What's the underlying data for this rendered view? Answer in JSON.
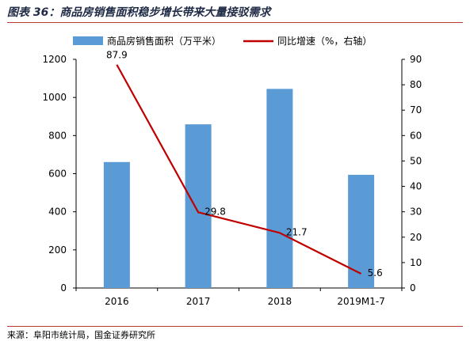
{
  "title": "图表 36：商品房销售面积稳步增长带来大量接驳需求",
  "source": "来源：阜阳市统计局，国金证券研究所",
  "colors": {
    "bar": "#5b9bd5",
    "line": "#c00000",
    "rule": "#b23b2b",
    "axis": "#000000"
  },
  "chart_data": {
    "type": "bar",
    "categories": [
      "2016",
      "2017",
      "2018",
      "2019M1-7"
    ],
    "series": [
      {
        "name": "商品房销售面积（万平米）",
        "type": "bar",
        "axis": "left",
        "values": [
          661,
          859,
          1045,
          594
        ]
      },
      {
        "name": "同比增速（%，右轴）",
        "type": "line",
        "axis": "right",
        "values": [
          87.9,
          29.8,
          21.7,
          5.6
        ],
        "labels": [
          "87.9",
          "29.8",
          "21.7",
          "5.6"
        ]
      }
    ],
    "ylim": [
      0,
      1200
    ],
    "yticks": [
      "0",
      "200",
      "400",
      "600",
      "800",
      "1000",
      "1200"
    ],
    "ylim_right": [
      0,
      90
    ],
    "yticks_right": [
      "0",
      "10",
      "20",
      "30",
      "40",
      "50",
      "60",
      "70",
      "80",
      "90"
    ],
    "legend_position": "top-center",
    "grid": false
  }
}
